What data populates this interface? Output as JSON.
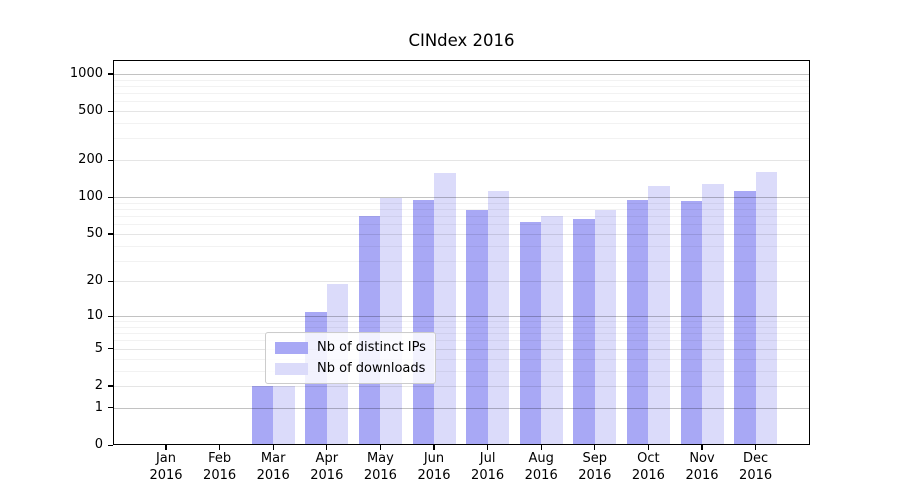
{
  "chart_data": {
    "type": "bar",
    "title": "CINdex 2016",
    "categories": [
      "Jan",
      "Feb",
      "Mar",
      "Apr",
      "May",
      "Jun",
      "Jul",
      "Aug",
      "Sep",
      "Oct",
      "Nov",
      "Dec"
    ],
    "category_sublabel": "2016",
    "series": [
      {
        "name": "Nb of distinct IPs",
        "color": "#a8a8f5",
        "values": [
          0,
          0,
          2,
          11,
          70,
          94,
          79,
          62,
          66,
          94,
          93,
          112
        ]
      },
      {
        "name": "Nb of downloads",
        "color": "#dbdbfa",
        "values": [
          0,
          0,
          2,
          19,
          98,
          157,
          112,
          70,
          79,
          124,
          127,
          160
        ]
      }
    ],
    "xlabel": "",
    "ylabel": "",
    "yscale": "log1p",
    "y_ticks": [
      0,
      1,
      2,
      5,
      10,
      20,
      50,
      100,
      200,
      500,
      1000
    ],
    "ylim": [
      0,
      1297
    ],
    "grid": "horizontal",
    "legend_position": "lower center"
  }
}
